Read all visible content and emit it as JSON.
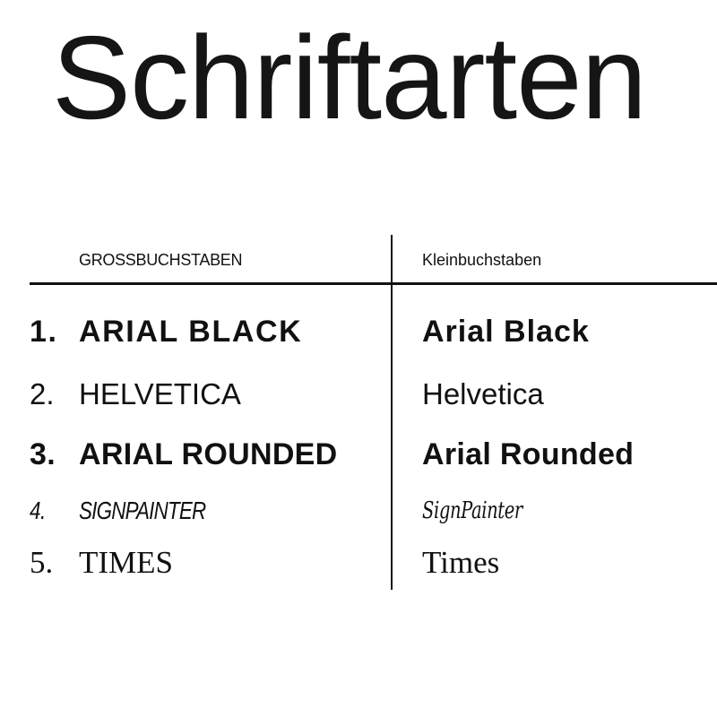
{
  "title": "Schriftarten",
  "table": {
    "headers": {
      "uppercase": "GROSSBUCHSTABEN",
      "lowercase": "Kleinbuchstaben"
    },
    "rows": [
      {
        "number": "1.",
        "upper": "ARIAL BLACK",
        "lower": "Arial Black"
      },
      {
        "number": "2.",
        "upper": "HELVETICA",
        "lower": "Helvetica"
      },
      {
        "number": "3.",
        "upper": "ARIAL ROUNDED",
        "lower": "Arial Rounded"
      },
      {
        "number": "4.",
        "upper": "SIGNPAINTER",
        "lower": "SignPainter"
      },
      {
        "number": "5.",
        "upper": "TIMES",
        "lower": "Times"
      }
    ]
  }
}
